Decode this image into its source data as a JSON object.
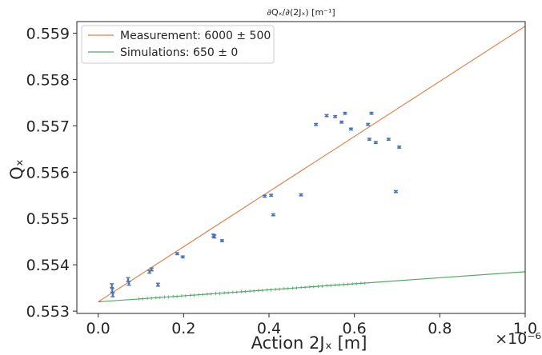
{
  "chart_data": {
    "type": "scatter",
    "title": "∂Qₓ/∂(2Jₓ) [m⁻¹]",
    "xlabel": "Action 2Jₓ [m]",
    "ylabel": "Qₓ",
    "x_offset_label": "×10⁻⁶",
    "xlim": [
      -0.05,
      1.0
    ],
    "ylim": [
      0.55295,
      0.55925
    ],
    "x_ticks": [
      0.0,
      0.2,
      0.4,
      0.6,
      0.8,
      1.0
    ],
    "x_tick_labels": [
      "0.0",
      "0.2",
      "0.4",
      "0.6",
      "0.8",
      "1.0"
    ],
    "y_ticks": [
      0.553,
      0.554,
      0.555,
      0.556,
      0.557,
      0.558,
      0.559
    ],
    "y_tick_labels": [
      "0.553",
      "0.554",
      "0.555",
      "0.556",
      "0.557",
      "0.558",
      "0.559"
    ],
    "grid": false,
    "legend_position": "top-left",
    "colors": {
      "measurement": "#dd8452",
      "simulation": "#55a868",
      "data": "#4c72b0"
    },
    "series": [
      {
        "name": "Measurement: 6000 ± 500",
        "kind": "fit-line",
        "x": [
          0.0,
          1.0
        ],
        "y": [
          0.5532,
          0.55915
        ]
      },
      {
        "name": "Simulations: 650 ± 0",
        "kind": "fit-line",
        "x": [
          0.0,
          1.0
        ],
        "y": [
          0.5532,
          0.55385
        ]
      },
      {
        "kind": "measured-points",
        "x": [
          0.032,
          0.033,
          0.034,
          0.07,
          0.072,
          0.12,
          0.125,
          0.14,
          0.185,
          0.198,
          0.27,
          0.272,
          0.29,
          0.39,
          0.405,
          0.41,
          0.475,
          0.51,
          0.535,
          0.555,
          0.57,
          0.578,
          0.592,
          0.632,
          0.635,
          0.64,
          0.65,
          0.68,
          0.697,
          0.705
        ],
        "y": [
          0.55355,
          0.55345,
          0.55335,
          0.55368,
          0.5536,
          0.55385,
          0.5539,
          0.55357,
          0.55424,
          0.55417,
          0.55463,
          0.55461,
          0.55452,
          0.55548,
          0.5555,
          0.55508,
          0.55551,
          0.55703,
          0.55722,
          0.5572,
          0.55708,
          0.55727,
          0.55693,
          0.55703,
          0.55671,
          0.55727,
          0.55664,
          0.55671,
          0.55558,
          0.55654
        ],
        "yerr": [
          4e-05,
          4e-05,
          4e-05,
          4e-05,
          4e-05,
          3e-05,
          3e-05,
          3e-05,
          2e-05,
          2e-05,
          3e-05,
          3e-05,
          2e-05,
          2e-05,
          2e-05,
          2e-05,
          2e-05,
          2e-05,
          2e-05,
          2e-05,
          2e-05,
          2e-05,
          2e-05,
          2e-05,
          2e-05,
          2e-05,
          2e-05,
          2e-05,
          2e-05,
          2e-05
        ]
      },
      {
        "kind": "simulated-points",
        "x": [
          0.1,
          0.12,
          0.14,
          0.16,
          0.18,
          0.2,
          0.22,
          0.24,
          0.26,
          0.28,
          0.3,
          0.32,
          0.34,
          0.36,
          0.38,
          0.4,
          0.42,
          0.44,
          0.46,
          0.48,
          0.5,
          0.52,
          0.54,
          0.56,
          0.58,
          0.6,
          0.62
        ],
        "y": [
          0.553265,
          0.553278,
          0.553291,
          0.553304,
          0.553317,
          0.55333,
          0.553343,
          0.553356,
          0.553369,
          0.553382,
          0.553395,
          0.553408,
          0.553421,
          0.553434,
          0.553447,
          0.55346,
          0.553473,
          0.553486,
          0.553499,
          0.553512,
          0.553525,
          0.553538,
          0.553551,
          0.553564,
          0.553577,
          0.55359,
          0.553603
        ]
      }
    ]
  }
}
